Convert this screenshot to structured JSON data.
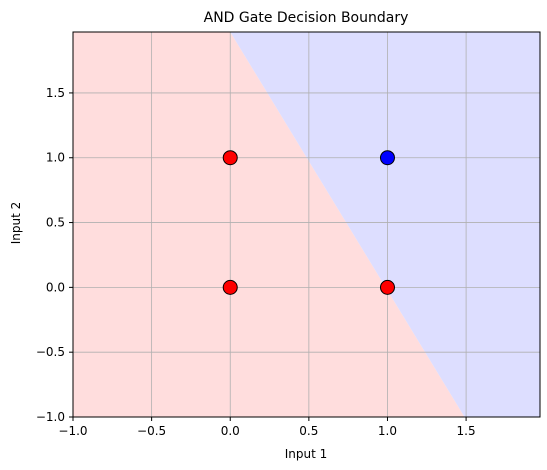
{
  "chart_data": {
    "type": "scatter",
    "title": "AND Gate Decision Boundary",
    "xlabel": "Input 1",
    "ylabel": "Input 2",
    "xlim": [
      -1.0,
      1.97
    ],
    "ylim": [
      -1.0,
      1.97
    ],
    "xticks": [
      -1.0,
      -0.5,
      0.0,
      0.5,
      1.0,
      1.5
    ],
    "yticks": [
      -1.0,
      -0.5,
      0.0,
      0.5,
      1.0,
      1.5
    ],
    "xtick_labels": [
      "−1.0",
      "−0.5",
      "0.0",
      "0.5",
      "1.0",
      "1.5"
    ],
    "ytick_labels": [
      "−1.0",
      "−0.5",
      "0.0",
      "0.5",
      "1.0",
      "1.5"
    ],
    "grid": true,
    "decision_boundary": {
      "points": [
        [
          0.0,
          1.97
        ],
        [
          1.49,
          -1.0
        ]
      ],
      "class_0_region_color": "#ffdddd",
      "class_1_region_color": "#dddeff"
    },
    "points": [
      {
        "x": 0,
        "y": 0,
        "class": 0,
        "color": "#ff0000"
      },
      {
        "x": 0,
        "y": 1,
        "class": 0,
        "color": "#ff0000"
      },
      {
        "x": 1,
        "y": 0,
        "class": 0,
        "color": "#ff0000"
      },
      {
        "x": 1,
        "y": 1,
        "class": 1,
        "color": "#0000ff"
      }
    ],
    "colors": {
      "grid": "#b0b0b0",
      "axes": "#000000",
      "marker_edge": "#000000"
    }
  }
}
